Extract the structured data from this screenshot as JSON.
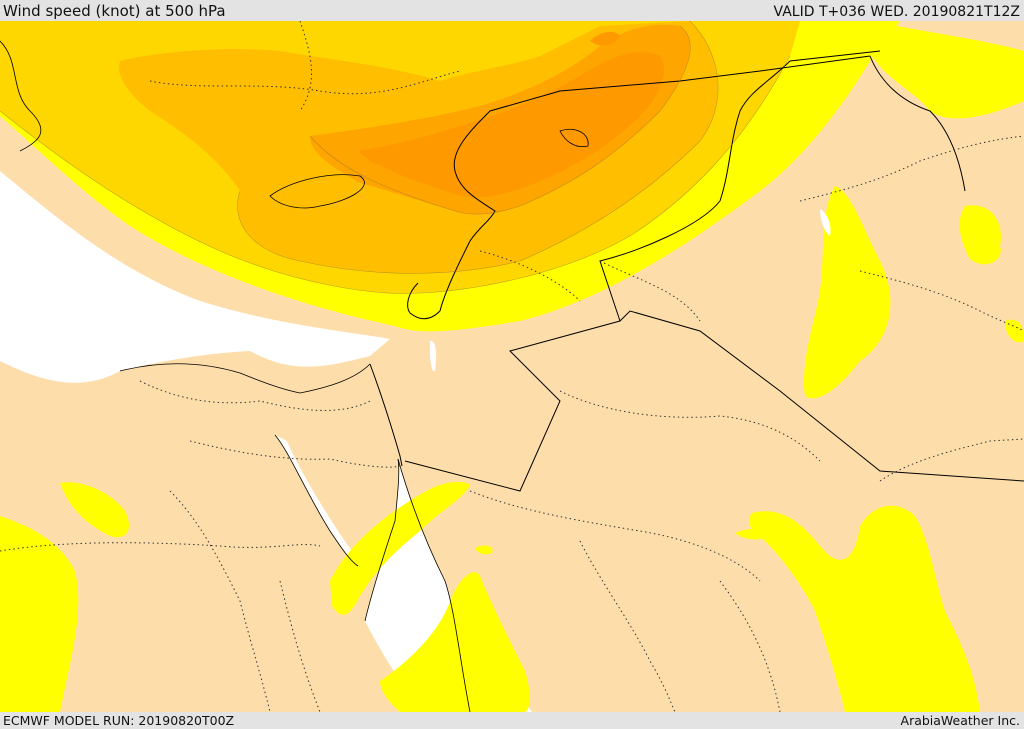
{
  "header": {
    "title": "Wind speed (knot) at 500 hPa",
    "valid": "VALID T+036 WED. 20190821T12Z"
  },
  "footer": {
    "model_run": "ECMWF MODEL RUN: 20190820T00Z",
    "credit": "ArabiaWeather Inc."
  },
  "map": {
    "colors": {
      "background_sand": "#fddeab",
      "sea_white": "#ffffff",
      "band_yellow": "#ffff00",
      "band_gold": "#ffd700",
      "band_amber": "#ffbf00",
      "band_orange": "#ffa500",
      "band_dark_orange": "#ff9900",
      "border_line": "#000000"
    }
  }
}
